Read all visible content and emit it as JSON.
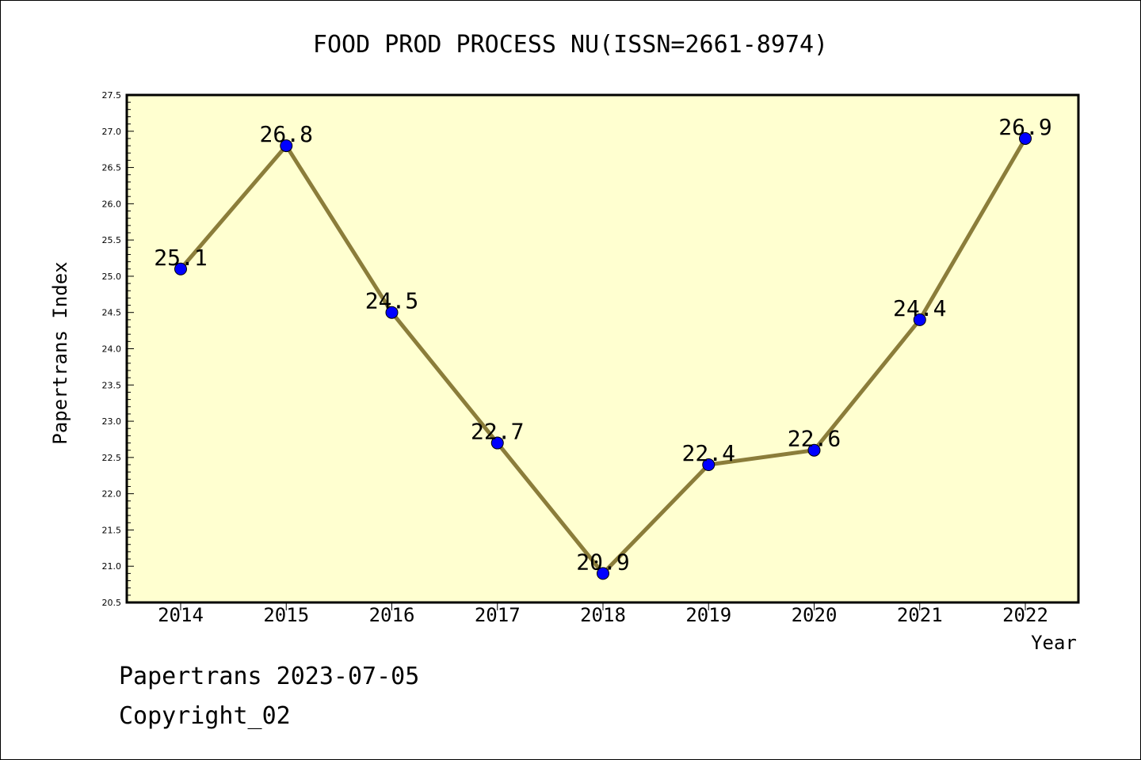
{
  "chart_data": {
    "type": "line",
    "title": "FOOD PROD PROCESS NU(ISSN=2661-8974)",
    "xlabel": "Year",
    "ylabel": "Papertrans Index",
    "categories": [
      "2014",
      "2015",
      "2016",
      "2017",
      "2018",
      "2019",
      "2020",
      "2021",
      "2022"
    ],
    "values": [
      25.1,
      26.8,
      24.5,
      22.7,
      20.9,
      22.4,
      22.6,
      24.4,
      26.9
    ],
    "data_labels": [
      "25.1",
      "26.8",
      "24.5",
      "22.7",
      "20.9",
      "22.4",
      "22.6",
      "24.4",
      "26.9"
    ],
    "ylim": [
      20.5,
      27.5
    ],
    "yticks": [
      "20.5",
      "21.0",
      "21.5",
      "22.0",
      "22.5",
      "23.0",
      "23.5",
      "24.0",
      "24.5",
      "25.0",
      "25.5",
      "26.0",
      "26.5",
      "27.0",
      "27.5"
    ],
    "grid": false,
    "plot_background": "#ffffd0",
    "line_color": "#8b7d3a",
    "marker_color": "#0000ff"
  },
  "footer": {
    "line1": "Papertrans 2023-07-05",
    "line2": "Copyright_02"
  }
}
